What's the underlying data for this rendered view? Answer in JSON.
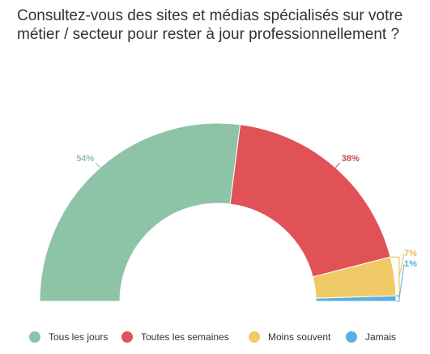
{
  "chart_data": {
    "type": "pie",
    "variant": "semi-donut",
    "title": "Consultez-vous des sites et médias spécialisés sur votre métier / secteur pour rester à jour professionnellement ?",
    "categories": [
      "Tous les jours",
      "Toutes les semaines",
      "Moins souvent",
      "Jamais"
    ],
    "values": [
      54,
      38,
      7,
      1
    ],
    "value_labels": [
      "54%",
      "38%",
      "7%",
      "1%"
    ],
    "colors": [
      "#8dc3a7",
      "#e05256",
      "#f0ca67",
      "#5aaee0"
    ],
    "label_colors": [
      "#8dc3a7",
      "#c84b4e",
      "#e8bd4e",
      "#5aaee0"
    ],
    "legend_position": "bottom"
  }
}
